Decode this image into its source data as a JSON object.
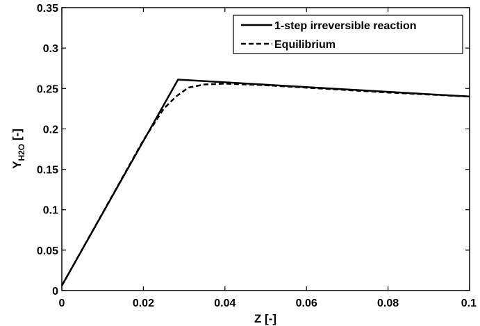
{
  "chart_data": {
    "type": "line",
    "title": "",
    "xlabel": "Z [-]",
    "ylabel": {
      "main": "Y",
      "subscript": "H2O",
      "suffix": " [-]"
    },
    "xlim": [
      0,
      0.1
    ],
    "ylim": [
      0,
      0.35
    ],
    "grid": false,
    "legend_position": "top-right",
    "x_ticks": [
      "0",
      "0.02",
      "0.04",
      "0.06",
      "0.08",
      "0.1"
    ],
    "y_ticks": [
      "0",
      "0.05",
      "0.1",
      "0.15",
      "0.2",
      "0.25",
      "0.3",
      "0.35"
    ],
    "series": [
      {
        "name": "1-step irreversible reaction",
        "style": "solid",
        "color": "#000000",
        "x": [
          0,
          0.0285,
          0.1
        ],
        "y": [
          0.006,
          0.261,
          0.24
        ]
      },
      {
        "name": "Equilibrium",
        "style": "dashed",
        "color": "#000000",
        "x": [
          0,
          0.02,
          0.025,
          0.028,
          0.031,
          0.035,
          0.04,
          0.05,
          0.06,
          0.08,
          0.1
        ],
        "y": [
          0.006,
          0.186,
          0.225,
          0.24,
          0.251,
          0.255,
          0.256,
          0.254,
          0.251,
          0.245,
          0.24
        ]
      }
    ]
  }
}
